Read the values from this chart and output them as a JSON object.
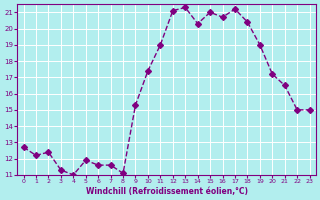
{
  "x": [
    0,
    1,
    2,
    3,
    4,
    5,
    6,
    7,
    8,
    9,
    10,
    11,
    12,
    13,
    14,
    15,
    16,
    17,
    18,
    19,
    20,
    21,
    22,
    23
  ],
  "y": [
    12.7,
    12.2,
    12.4,
    11.3,
    11.0,
    11.9,
    11.6,
    11.6,
    11.1,
    15.3,
    17.4,
    19.0,
    21.1,
    21.3,
    20.3,
    21.0,
    20.7,
    21.2,
    20.4,
    19.0,
    17.2,
    16.5,
    15.0,
    15.0
  ],
  "line_color": "#800080",
  "marker": "D",
  "marker_size": 3,
  "bg_color": "#b2eeee",
  "grid_color": "#ffffff",
  "xlabel": "Windchill (Refroidissement éolien,°C)",
  "xlabel_color": "#800080",
  "tick_color": "#800080",
  "ylim": [
    11,
    21.5
  ],
  "xlim": [
    -0.5,
    23.5
  ],
  "yticks": [
    11,
    12,
    13,
    14,
    15,
    16,
    17,
    18,
    19,
    20,
    21
  ],
  "xticks": [
    0,
    1,
    2,
    3,
    4,
    5,
    6,
    7,
    8,
    9,
    10,
    11,
    12,
    13,
    14,
    15,
    16,
    17,
    18,
    19,
    20,
    21,
    22,
    23
  ]
}
